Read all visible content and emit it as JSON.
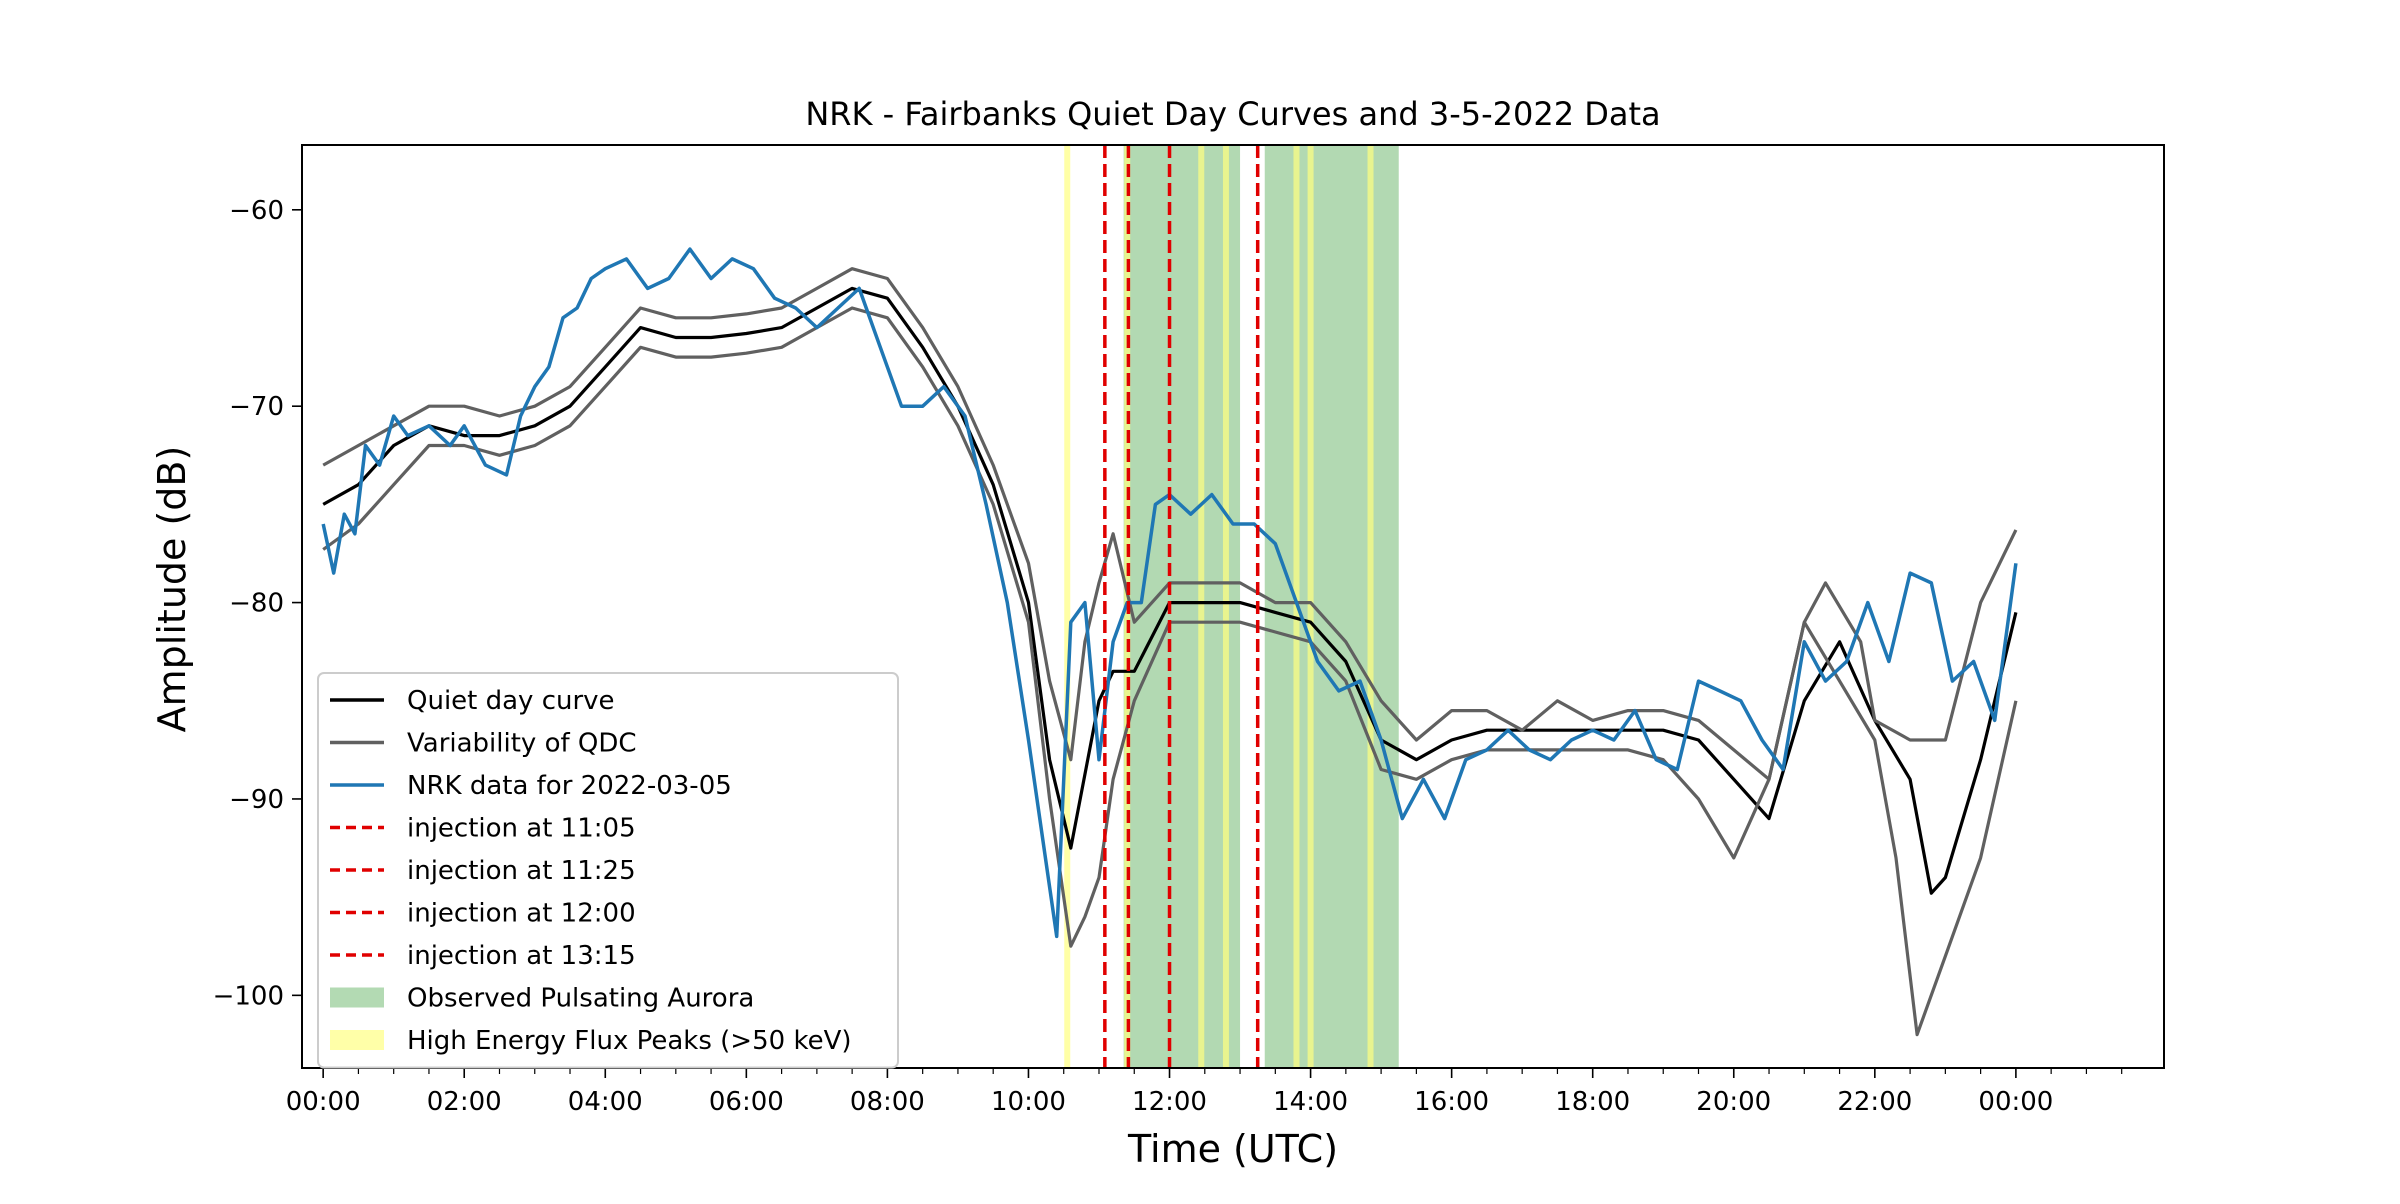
{
  "chart_data": {
    "type": "line",
    "title": "NRK - Fairbanks Quiet Day Curves and 3-5-2022 Data",
    "xlabel": "Time (UTC)",
    "ylabel": "Amplitude (dB)",
    "x_unit": "hours UTC",
    "xlim": [
      -0.3,
      26.1
    ],
    "ylim": [
      -103.7,
      -56.7
    ],
    "grid": false,
    "legend_position": "lower-left",
    "x_ticks": [
      {
        "value": 0,
        "label": "00:00"
      },
      {
        "value": 2,
        "label": "02:00"
      },
      {
        "value": 4,
        "label": "04:00"
      },
      {
        "value": 6,
        "label": "06:00"
      },
      {
        "value": 8,
        "label": "08:00"
      },
      {
        "value": 10,
        "label": "10:00"
      },
      {
        "value": 12,
        "label": "12:00"
      },
      {
        "value": 14,
        "label": "14:00"
      },
      {
        "value": 16,
        "label": "16:00"
      },
      {
        "value": 18,
        "label": "18:00"
      },
      {
        "value": 20,
        "label": "20:00"
      },
      {
        "value": 22,
        "label": "22:00"
      },
      {
        "value": 24,
        "label": "00:00"
      }
    ],
    "y_ticks": [
      {
        "value": -60,
        "label": "−60"
      },
      {
        "value": -70,
        "label": "−70"
      },
      {
        "value": -80,
        "label": "−80"
      },
      {
        "value": -90,
        "label": "−90"
      },
      {
        "value": -100,
        "label": "−100"
      }
    ],
    "colors": {
      "qdc": "#000000",
      "variability": "#606060",
      "nrk": "#1f77b4",
      "injection": "#e00000",
      "aurora": "#7fc07f",
      "flux": "#ffff80"
    },
    "legend": [
      {
        "label": "Quiet day curve",
        "kind": "line",
        "color": "#000000"
      },
      {
        "label": "Variability of QDC",
        "kind": "line",
        "color": "#606060"
      },
      {
        "label": "NRK data for 2022-03-05",
        "kind": "line",
        "color": "#1f77b4"
      },
      {
        "label": "injection at 11:05",
        "kind": "dash",
        "color": "#e00000"
      },
      {
        "label": "injection at 11:25",
        "kind": "dash",
        "color": "#e00000"
      },
      {
        "label": "injection at 12:00",
        "kind": "dash",
        "color": "#e00000"
      },
      {
        "label": "injection at 13:15",
        "kind": "dash",
        "color": "#e00000"
      },
      {
        "label": "Observed Pulsating Aurora",
        "kind": "patch",
        "color": "#b3dab3"
      },
      {
        "label": "High Energy Flux Peaks (>50 keV)",
        "kind": "patch",
        "color": "#ffffa8"
      }
    ],
    "pulsating_aurora_spans": [
      [
        11.35,
        13.0
      ],
      [
        13.35,
        15.25
      ]
    ],
    "high_energy_flux_peaks": [
      10.55,
      11.4,
      12.45,
      12.8,
      13.8,
      14.0,
      14.85
    ],
    "injections": [
      11.083,
      11.417,
      12.0,
      13.25
    ],
    "series": [
      {
        "name": "Quiet day curve",
        "color": "#000000",
        "x": [
          0,
          0.5,
          1,
          1.5,
          2,
          2.5,
          3,
          3.5,
          4,
          4.5,
          5,
          5.5,
          6,
          6.5,
          7,
          7.5,
          8,
          8.5,
          9,
          9.5,
          10,
          10.3,
          10.6,
          11,
          11.2,
          11.5,
          12,
          12.5,
          13,
          13.5,
          14,
          14.5,
          15,
          15.5,
          16,
          16.5,
          17,
          17.5,
          18,
          18.5,
          19,
          19.5,
          20,
          20.5,
          21,
          21.5,
          22,
          22.5,
          22.8,
          23,
          23.5,
          24
        ],
        "y": [
          -75,
          -74,
          -72,
          -71,
          -71.5,
          -71.5,
          -71,
          -70,
          -68,
          -66,
          -66.5,
          -66.5,
          -66.3,
          -66,
          -65,
          -64,
          -64.5,
          -67,
          -70,
          -74,
          -80,
          -88,
          -92.5,
          -85,
          -83.5,
          -83.5,
          -80,
          -80,
          -80,
          -80.5,
          -81,
          -83,
          -87,
          -88,
          -87,
          -86.5,
          -86.5,
          -86.5,
          -86.5,
          -86.5,
          -86.5,
          -87,
          -89,
          -91,
          -85,
          -82,
          -86,
          -89,
          -94.8,
          -94,
          -88,
          -80.5
        ]
      },
      {
        "name": "Variability upper",
        "color": "#606060",
        "x": [
          0,
          0.5,
          1,
          1.5,
          2,
          2.5,
          3,
          3.5,
          4,
          4.5,
          5,
          5.5,
          6,
          6.5,
          7,
          7.5,
          8,
          8.5,
          9,
          9.5,
          10,
          10.3,
          10.6,
          10.8,
          11,
          11.2,
          11.5,
          12,
          12.5,
          13,
          13.5,
          14,
          14.5,
          15,
          15.5,
          16,
          16.5,
          17,
          17.5,
          18,
          18.5,
          19,
          19.5,
          20,
          20.5,
          21,
          21.3,
          21.8,
          22,
          22.5,
          23,
          23.5,
          24
        ],
        "y": [
          -73,
          -72,
          -71,
          -70,
          -70,
          -70.5,
          -70,
          -69,
          -67,
          -65,
          -65.5,
          -65.5,
          -65.3,
          -65,
          -64,
          -63,
          -63.5,
          -66,
          -69,
          -73,
          -78,
          -84,
          -88,
          -82,
          -79,
          -76.5,
          -81,
          -79,
          -79,
          -79,
          -80,
          -80,
          -82,
          -85,
          -87,
          -85.5,
          -85.5,
          -86.5,
          -85,
          -86,
          -85.5,
          -85.5,
          -86,
          -87.5,
          -89,
          -81,
          -79,
          -82,
          -86,
          -87,
          -87,
          -80,
          -76.3
        ]
      },
      {
        "name": "Variability lower",
        "color": "#606060",
        "x": [
          0,
          0.5,
          1,
          1.5,
          2,
          2.5,
          3,
          3.5,
          4,
          4.5,
          5,
          5.5,
          6,
          6.5,
          7,
          7.5,
          8,
          8.5,
          9,
          9.5,
          10,
          10.3,
          10.6,
          10.8,
          11,
          11.2,
          11.5,
          12,
          12.5,
          13,
          13.5,
          14,
          14.5,
          15,
          15.5,
          16,
          16.5,
          17,
          17.5,
          18,
          18.5,
          19,
          19.5,
          20,
          20.5,
          21,
          21.5,
          22,
          22.3,
          22.6,
          23,
          23.5,
          24
        ],
        "y": [
          -77.3,
          -76,
          -74,
          -72,
          -72,
          -72.5,
          -72,
          -71,
          -69,
          -67,
          -67.5,
          -67.5,
          -67.3,
          -67,
          -66,
          -65,
          -65.5,
          -68,
          -71,
          -75,
          -81,
          -90,
          -97.5,
          -96,
          -94,
          -89,
          -85,
          -81,
          -81,
          -81,
          -81.5,
          -82,
          -84,
          -88.5,
          -89,
          -88,
          -87.5,
          -87.5,
          -87.5,
          -87.5,
          -87.5,
          -88,
          -90,
          -93,
          -89,
          -81,
          -84,
          -87,
          -93,
          -102,
          -98,
          -93,
          -85
        ]
      },
      {
        "name": "NRK data for 2022-03-05",
        "color": "#1f77b4",
        "x": [
          0,
          0.15,
          0.3,
          0.45,
          0.6,
          0.8,
          1.0,
          1.2,
          1.5,
          1.8,
          2.0,
          2.3,
          2.6,
          2.8,
          3.0,
          3.2,
          3.4,
          3.6,
          3.8,
          4.0,
          4.3,
          4.6,
          4.9,
          5.2,
          5.5,
          5.8,
          6.1,
          6.4,
          6.7,
          7.0,
          7.3,
          7.6,
          7.9,
          8.2,
          8.5,
          8.8,
          9.1,
          9.4,
          9.7,
          10.0,
          10.2,
          10.4,
          10.6,
          10.8,
          11.0,
          11.2,
          11.4,
          11.6,
          11.8,
          12.0,
          12.3,
          12.6,
          12.9,
          13.2,
          13.5,
          13.8,
          14.1,
          14.4,
          14.7,
          15.0,
          15.3,
          15.6,
          15.9,
          16.2,
          16.5,
          16.8,
          17.1,
          17.4,
          17.7,
          18.0,
          18.3,
          18.6,
          18.9,
          19.2,
          19.5,
          19.8,
          20.1,
          20.4,
          20.7,
          21.0,
          21.3,
          21.6,
          21.9,
          22.2,
          22.5,
          22.8,
          23.1,
          23.4,
          23.7,
          24.0
        ],
        "y": [
          -76,
          -78.5,
          -75.5,
          -76.5,
          -72,
          -73,
          -70.5,
          -71.5,
          -71,
          -72,
          -71,
          -73,
          -73.5,
          -70.5,
          -69,
          -68,
          -65.5,
          -65,
          -63.5,
          -63,
          -62.5,
          -64,
          -63.5,
          -62,
          -63.5,
          -62.5,
          -63,
          -64.5,
          -65,
          -66,
          -65,
          -64,
          -67,
          -70,
          -70,
          -69,
          -70.5,
          -75,
          -80,
          -87,
          -92,
          -97,
          -81,
          -80,
          -88,
          -82,
          -80,
          -80,
          -75,
          -74.5,
          -75.5,
          -74.5,
          -76,
          -76,
          -77,
          -80,
          -83,
          -84.5,
          -84,
          -87,
          -91,
          -89,
          -91,
          -88,
          -87.5,
          -86.5,
          -87.5,
          -88,
          -87,
          -86.5,
          -87,
          -85.5,
          -88,
          -88.5,
          -84,
          -84.5,
          -85,
          -87,
          -88.5,
          -82,
          -84,
          -83,
          -80,
          -83,
          -78.5,
          -79,
          -84,
          -83,
          -86,
          -78
        ]
      }
    ]
  }
}
